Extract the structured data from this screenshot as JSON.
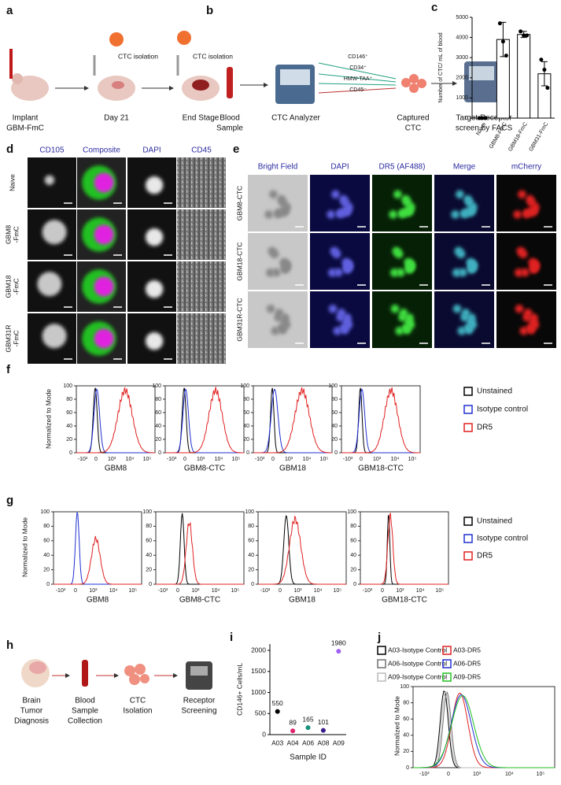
{
  "panel_labels": [
    "a",
    "b",
    "c",
    "d",
    "e",
    "f",
    "g",
    "h",
    "i",
    "j"
  ],
  "a": {
    "steps": [
      [
        "Implant",
        "GBM-FmC"
      ],
      [
        "Day 21"
      ],
      [
        "End Stage"
      ]
    ],
    "isolation": [
      "CTC isolation",
      "CTC isolation"
    ]
  },
  "b": {
    "sample": [
      "Blood",
      "Sample"
    ],
    "analyzer": "CTC Analyzer",
    "markers": [
      "CD146⁺",
      "CD34⁺",
      "HMW-TAA⁺",
      "CD45⁻"
    ],
    "captured": [
      "Captured",
      "CTC"
    ],
    "screen": [
      "Target Receptor",
      "screen by FACS"
    ]
  },
  "d": {
    "columns": [
      "CD105",
      "Composite",
      "DAPI",
      "CD45"
    ],
    "rows": [
      [
        "Naive"
      ],
      [
        "GBM8",
        "-FmC"
      ],
      [
        "GBM18",
        "-FmC"
      ],
      [
        "GBM31R",
        "-FmC"
      ]
    ]
  },
  "e": {
    "columns": [
      "Bright Field",
      "DAPI",
      "DR5 (AF488)",
      "Merge",
      "mCherry"
    ],
    "rows": [
      "GBM8-CTC",
      "GBM18-CTC",
      "GBM31R-CTC"
    ]
  },
  "f": {
    "ylabel": "Normalized to Mode",
    "yticks": [
      0,
      20,
      40,
      60,
      80,
      100
    ],
    "xticks": [
      "-10³",
      "0",
      "10³",
      "10⁴",
      "10⁵"
    ],
    "samples": [
      "GBM8",
      "GBM8-CTC",
      "GBM18",
      "GBM18-CTC"
    ],
    "legend": [
      "Unstained",
      "Isotype control",
      "DR5"
    ]
  },
  "g": {
    "ylabel": "Normalized to Mode",
    "yticks": [
      0,
      20,
      40,
      60,
      80,
      100
    ],
    "xticks": [
      "-10³",
      "0",
      "10³",
      "10⁴",
      "10⁵"
    ],
    "samples": [
      "GBM8",
      "GBM8-CTC",
      "GBM18",
      "GBM18-CTC"
    ],
    "legend": [
      "Unstained",
      "Isotype control",
      "DR5"
    ]
  },
  "h": {
    "steps": [
      [
        "Brain",
        "Tumor",
        "Diagnosis"
      ],
      [
        "Blood",
        "Sample",
        "Collection"
      ],
      [
        "CTC",
        "Isolation"
      ],
      [
        "Receptor",
        "Screening"
      ]
    ]
  },
  "j": {
    "ylabel": "Normalized to Mode",
    "yticks": [
      0,
      20,
      40,
      60,
      80,
      100
    ],
    "xticks": [
      "-10³",
      "0",
      "10³",
      "10⁴",
      "10⁵"
    ],
    "legend": [
      "A03-Isotype Control",
      "A03-DR5",
      "A06-Isotype Control",
      "A06-DR5",
      "A09-Isotype Control",
      "A09-DR5"
    ],
    "legend_colors": [
      "#000000",
      "#e02020",
      "#707070",
      "#2030d0",
      "#bbbbbb",
      "#20c020"
    ]
  },
  "chart_data": [
    {
      "type": "bar",
      "ylabel": "Number of CTC/ mL of blood",
      "categories": [
        "Naive",
        "GBM8-FmC",
        "GBM18-FmC",
        "GBM31-FmC"
      ],
      "values": [
        0,
        3900,
        4150,
        2200
      ],
      "errors": [
        0,
        850,
        150,
        600
      ],
      "points": [
        [
          0,
          0,
          0
        ],
        [
          4700,
          3800,
          3100
        ],
        [
          4300,
          4100,
          4100
        ],
        [
          2900,
          2400,
          1500
        ]
      ],
      "color": "#ffffff",
      "point_color": "#000000",
      "ylim": [
        0,
        5000
      ],
      "yticks": [
        0,
        1000,
        2000,
        3000,
        4000,
        5000
      ]
    },
    {
      "type": "scatter",
      "ylabel": "CD146+ Cells/mL",
      "xlabel": "Sample ID",
      "categories": [
        "A03",
        "A04",
        "A06",
        "A08",
        "A09"
      ],
      "values": [
        550,
        89,
        165,
        101,
        1980
      ],
      "colors": [
        "#000000",
        "#e0206a",
        "#15907a",
        "#3a1a8a",
        "#a060f0"
      ],
      "ylim": [
        0,
        2150
      ],
      "yticks": [
        0,
        500,
        1000,
        1500,
        2000
      ]
    }
  ]
}
